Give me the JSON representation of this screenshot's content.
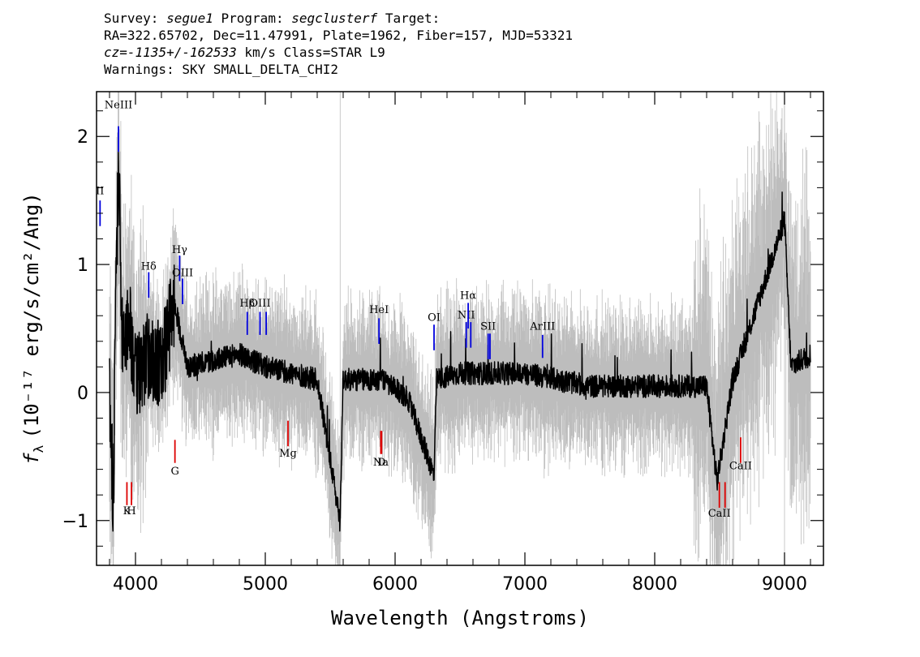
{
  "header": {
    "survey_label": "Survey:",
    "survey": "segue1",
    "program_label": "Program:",
    "program": "segclusterf",
    "target_label": "Target:",
    "line2": "RA=322.65702, Dec=11.47991, Plate=1962, Fiber=157, MJD=53321",
    "cz_label": "cz=",
    "cz_value": "-1135+/-162533",
    "cz_rest": " km/s Class=STAR L9",
    "warnings": "Warnings: SKY SMALL_DELTA_CHI2"
  },
  "chart_data": {
    "type": "line",
    "xlabel": "Wavelength (Angstroms)",
    "ylabel_prefix": "f",
    "ylabel_sub": "λ",
    "ylabel_rest": "(10⁻¹⁷ erg/s/cm²/Ang)",
    "xlim": [
      3700,
      9300
    ],
    "ylim": [
      -1.35,
      2.35
    ],
    "x_ticks": [
      4000,
      5000,
      6000,
      7000,
      8000,
      9000
    ],
    "x_tick_labels": [
      "4000",
      "5000",
      "6000",
      "7000",
      "8000",
      "9000"
    ],
    "y_ticks": [
      -1,
      0,
      1,
      2
    ],
    "y_tick_labels": [
      "−1",
      "0",
      "1",
      "2"
    ],
    "colors": {
      "flux": "#000000",
      "error": "#bdbdbd",
      "emission": "#0000dd",
      "absorption": "#dd0000"
    },
    "flux_range": [
      3800,
      9200
    ],
    "flux_anchors": [
      [
        3800,
        0.05
      ],
      [
        3830,
        -0.9
      ],
      [
        3850,
        0.9
      ],
      [
        3870,
        1.8
      ],
      [
        3900,
        0.3
      ],
      [
        3950,
        0.6
      ],
      [
        4000,
        0.1
      ],
      [
        4100,
        0.3
      ],
      [
        4200,
        0.2
      ],
      [
        4300,
        0.7
      ],
      [
        4400,
        0.2
      ],
      [
        4600,
        0.25
      ],
      [
        4800,
        0.3
      ],
      [
        5000,
        0.2
      ],
      [
        5200,
        0.15
      ],
      [
        5400,
        0.1
      ],
      [
        5575,
        -1.0
      ],
      [
        5600,
        0.1
      ],
      [
        5900,
        0.1
      ],
      [
        6100,
        -0.05
      ],
      [
        6300,
        -0.65
      ],
      [
        6320,
        0.1
      ],
      [
        6500,
        0.15
      ],
      [
        7000,
        0.15
      ],
      [
        7500,
        0.05
      ],
      [
        8000,
        0.05
      ],
      [
        8400,
        0.05
      ],
      [
        8480,
        -0.7
      ],
      [
        8600,
        0.1
      ],
      [
        8700,
        0.4
      ],
      [
        9000,
        1.35
      ],
      [
        9050,
        0.2
      ],
      [
        9200,
        0.3
      ]
    ],
    "emission_lines": [
      {
        "label": "NeIII",
        "x": 3869,
        "y1": 1.88,
        "y2": 2.08,
        "label_y": 2.22
      },
      {
        "label": "II",
        "x": 3727,
        "y1": 1.3,
        "y2": 1.5,
        "label_y": 1.55
      },
      {
        "label": "Hδ",
        "x": 4102,
        "y1": 0.74,
        "y2": 0.94,
        "label_y": 0.96
      },
      {
        "label": "Hγ",
        "x": 4340,
        "y1": 0.87,
        "y2": 1.07,
        "label_y": 1.09
      },
      {
        "label": "OIII",
        "x": 4363,
        "y1": 0.69,
        "y2": 0.89,
        "label_y": 0.91
      },
      {
        "label": "Hβ",
        "x": 4861,
        "y1": 0.45,
        "y2": 0.63,
        "label_y": 0.67
      },
      {
        "label": "OIII",
        "x": 4959,
        "y1": 0.45,
        "y2": 0.63,
        "label_y": 0.67
      },
      {
        "label": "OIII",
        "x": 5007,
        "y1": 0.45,
        "y2": 0.63,
        "label_y": 0.67
      },
      {
        "label": "HeI",
        "x": 5876,
        "y1": 0.38,
        "y2": 0.58,
        "label_y": 0.62
      },
      {
        "label": "OI",
        "x": 6300,
        "y1": 0.33,
        "y2": 0.53,
        "label_y": 0.56
      },
      {
        "label": "NII",
        "x": 6548,
        "y1": 0.35,
        "y2": 0.55,
        "label_y": 0.58
      },
      {
        "label": "Hα",
        "x": 6563,
        "y1": 0.5,
        "y2": 0.7,
        "label_y": 0.73
      },
      {
        "label": "NII",
        "x": 6583,
        "y1": 0.35,
        "y2": 0.55,
        "label_y": 0.58
      },
      {
        "label": "SII",
        "x": 6717,
        "y1": 0.26,
        "y2": 0.46,
        "label_y": 0.49
      },
      {
        "label": "SII",
        "x": 6731,
        "y1": 0.26,
        "y2": 0.46,
        "label_y": 0.49
      },
      {
        "label": "ArIII",
        "x": 7136,
        "y1": 0.27,
        "y2": 0.45,
        "label_y": 0.49
      }
    ],
    "absorption_lines": [
      {
        "label": "K",
        "x": 3934,
        "y1": -0.7,
        "y2": -0.88,
        "label_y": -0.95
      },
      {
        "label": "H",
        "x": 3969,
        "y1": -0.7,
        "y2": -0.88,
        "label_y": -0.95
      },
      {
        "label": "G",
        "x": 4304,
        "y1": -0.37,
        "y2": -0.55,
        "label_y": -0.64
      },
      {
        "label": "Mg",
        "x": 5175,
        "y1": -0.22,
        "y2": -0.42,
        "label_y": -0.5
      },
      {
        "label": "Na",
        "x": 5890,
        "y1": -0.3,
        "y2": -0.48,
        "label_y": -0.57
      },
      {
        "label": "D",
        "x": 5896,
        "y1": -0.3,
        "y2": -0.48,
        "label_y": -0.57
      },
      {
        "label": "CaII",
        "x": 8498,
        "y1": -0.7,
        "y2": -0.9,
        "label_y": -0.97
      },
      {
        "label": "CaII",
        "x": 8542,
        "y1": -0.7,
        "y2": -0.9,
        "label_y": -0.97
      },
      {
        "label": "CaII",
        "x": 8662,
        "y1": -0.35,
        "y2": -0.55,
        "label_y": -0.6
      }
    ]
  }
}
